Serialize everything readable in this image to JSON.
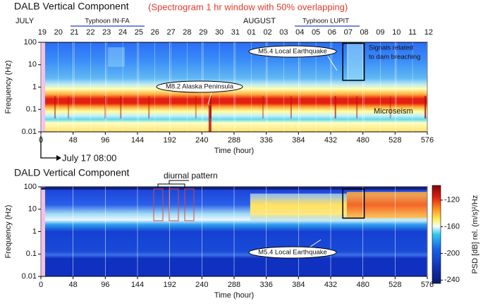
{
  "chart_data": [
    {
      "type": "spectrogram",
      "title": "DALB Vertical Component",
      "subtitle": "(Spectrogram 1 hr window with 50% overlapping)",
      "months": [
        "JULY",
        "AUGUST"
      ],
      "typhoons": [
        "Typhoon IN-FA",
        "Typhoon LUPIT"
      ],
      "days": [
        "19",
        "20",
        "21",
        "22",
        "23",
        "24",
        "25",
        "26",
        "27",
        "28",
        "29",
        "30",
        "31",
        "01",
        "02",
        "03",
        "04",
        "05",
        "06",
        "07",
        "08",
        "09",
        "10",
        "11",
        "12"
      ],
      "xlabel": "Time (hour)",
      "ylabel": "Frequency (Hz)",
      "xlim": [
        0,
        576
      ],
      "xticks": [
        0,
        48,
        96,
        144,
        192,
        240,
        288,
        336,
        384,
        432,
        480,
        528,
        576
      ],
      "ylim": [
        0.01,
        100
      ],
      "yticks": [
        100,
        10,
        1,
        0.1,
        0.01
      ],
      "yscale": "log",
      "annotations": [
        "M5.4 Local Earthquake",
        "M8.2 Alaska Peninsula",
        "Signals related",
        "to dam breaching",
        "Microseism",
        "July 17 08:00"
      ]
    },
    {
      "type": "spectrogram",
      "title": "DALD Vertical Component",
      "xlabel": "Time (hour)",
      "ylabel": "Frequency (Hz)",
      "xlim": [
        0,
        576
      ],
      "xticks": [
        0,
        48,
        96,
        144,
        192,
        240,
        288,
        336,
        384,
        432,
        480,
        528,
        576
      ],
      "ylim": [
        0.01,
        100
      ],
      "yticks": [
        100,
        10,
        1,
        0.1,
        0.01
      ],
      "yscale": "log",
      "annotations": [
        "diurnal pattern",
        "M5.4 Local Earthquake"
      ],
      "colorbar": {
        "label": "PSD [dB] rel. (m/s)²/Hz",
        "lim": [
          -245,
          -98
        ],
        "ticks": [
          -120,
          -160,
          -200,
          -240
        ]
      }
    }
  ]
}
